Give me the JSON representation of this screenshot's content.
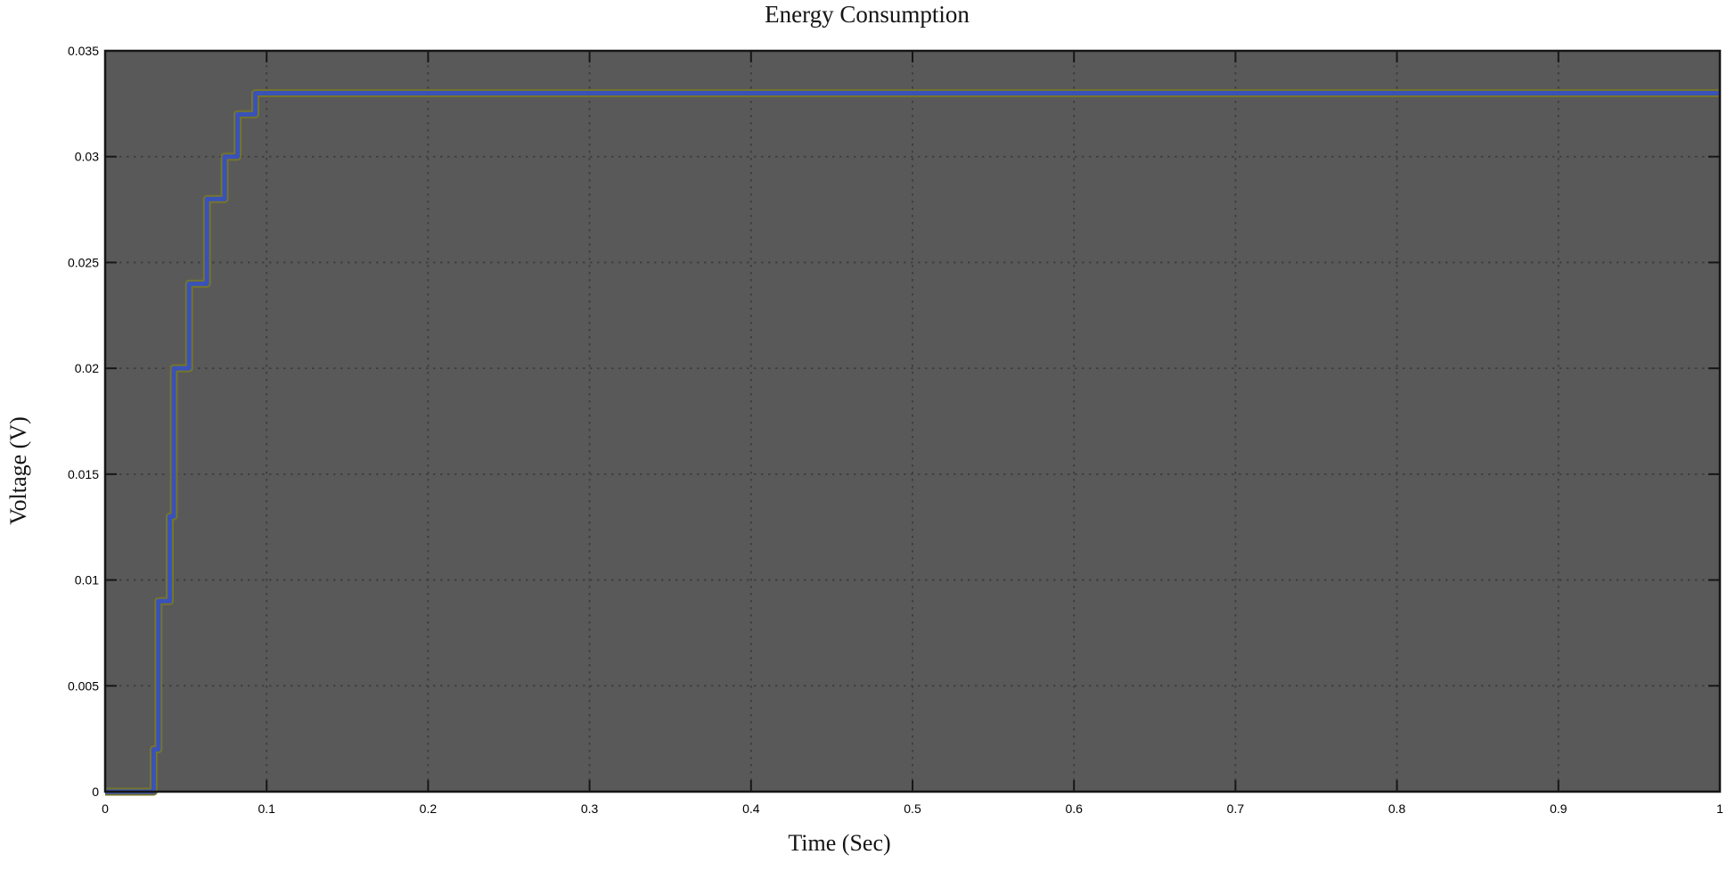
{
  "chart_data": {
    "type": "line",
    "subtype": "step",
    "title": "Energy Consumption",
    "xlabel": "Time (Sec)",
    "ylabel": "Voltage (V)",
    "xlim": [
      0,
      1
    ],
    "ylim": [
      0,
      0.035
    ],
    "x_ticks": [
      0,
      0.1,
      0.2,
      0.3,
      0.4,
      0.5,
      0.6,
      0.7,
      0.8,
      0.9,
      1
    ],
    "x_tick_labels": [
      "0",
      "0.1",
      "0.2",
      "0.3",
      "0.4",
      "0.5",
      "0.6",
      "0.7",
      "0.8",
      "0.9",
      "1"
    ],
    "y_ticks": [
      0,
      0.005,
      0.01,
      0.015,
      0.02,
      0.025,
      0.03,
      0.035
    ],
    "y_tick_labels": [
      "0",
      "0.005",
      "0.01",
      "0.015",
      "0.02",
      "0.025",
      "0.03",
      "0.035"
    ],
    "grid": true,
    "grid_style": "dotted",
    "legend": null,
    "plot_background": "#595959",
    "grid_color": "#3d3d3d",
    "axis_color": "#161616",
    "series": [
      {
        "name": "voltage",
        "color": "#3a52b8",
        "edge_color": "#75752a",
        "description": "step function: segments as [t_start, t_end, voltage]",
        "segments": [
          [
            0.0,
            0.03,
            0.0
          ],
          [
            0.03,
            0.033,
            0.002
          ],
          [
            0.033,
            0.04,
            0.009
          ],
          [
            0.04,
            0.0425,
            0.013
          ],
          [
            0.0425,
            0.052,
            0.02
          ],
          [
            0.052,
            0.063,
            0.024
          ],
          [
            0.063,
            0.074,
            0.028
          ],
          [
            0.074,
            0.082,
            0.03
          ],
          [
            0.082,
            0.093,
            0.032
          ],
          [
            0.093,
            1.0,
            0.033
          ]
        ]
      }
    ]
  }
}
